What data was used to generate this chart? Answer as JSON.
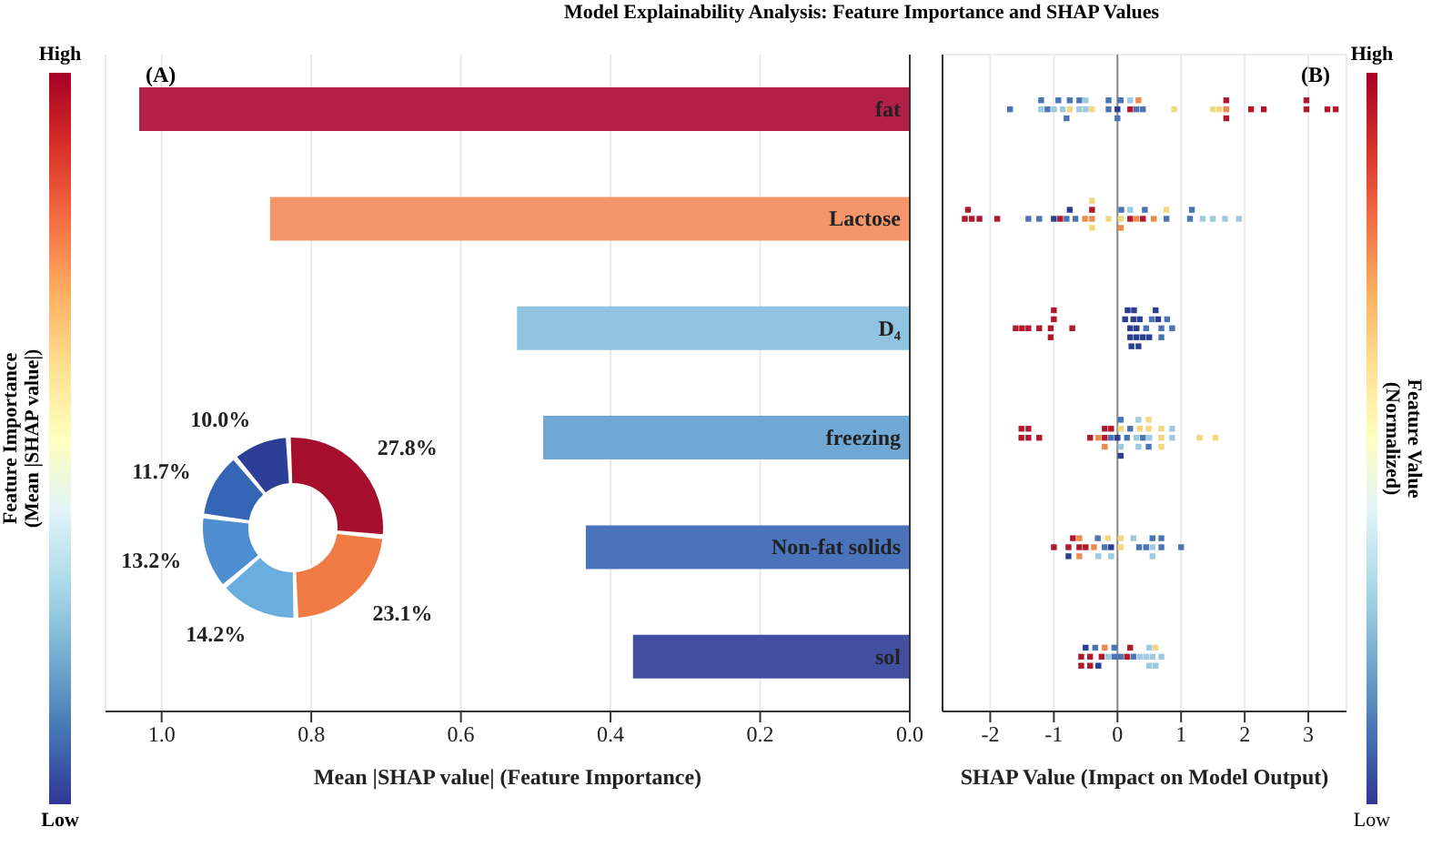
{
  "chart_data": [
    {
      "type": "bar",
      "orientation": "horizontal",
      "title": "Model Explainability Analysis: Feature Importance and SHAP Values",
      "xlabel": "Mean |SHAP value| (Feature Importance)",
      "annotations": [
        "(A)",
        "High",
        "Low"
      ],
      "categories": [
        "fat",
        "Lactose",
        "D₄",
        "freezing",
        "Non-fat solids",
        "sol"
      ],
      "values": [
        1.03,
        0.855,
        0.525,
        0.49,
        0.433,
        0.37
      ],
      "colors": [
        "#b41f48",
        "#f4956a",
        "#8fc3e0",
        "#6fa8d4",
        "#4a73bb",
        "#434fa0"
      ],
      "xlim": [
        1.075,
        0
      ],
      "xticks": [
        {
          "value": 1,
          "label": "1.0"
        },
        0.8,
        0.6,
        0.4,
        0.2,
        {
          "value": 0,
          "label": "0.0"
        }
      ],
      "grid": "x",
      "clabel": "Feature Importance\n(Mean |SHAP  value|)"
    },
    {
      "type": "donut",
      "categories": [
        null,
        null,
        null,
        null,
        null,
        null
      ],
      "values": [
        27.8,
        23.1,
        14.2,
        13.2,
        11.7,
        10.0
      ],
      "colors": [
        "#a50f2d",
        "#f07b45",
        "#6aaee0",
        "#4d8fd0",
        "#3565b5",
        "#2a3f95"
      ],
      "value_labels": [
        "27.8%",
        "23.1%",
        "14.2%",
        "13.2%",
        "11.7%",
        "10.0%"
      ]
    },
    {
      "type": "scatter",
      "orientation": "horizontal",
      "xlabel": "SHAP Value (Impact on Model Output)",
      "annotations": [
        "(B)",
        "High",
        "Low"
      ],
      "clabel": "Feature Value\n(Normalized)",
      "categories": [
        "fat",
        "Lactose",
        "D₄",
        "freezing",
        "Non-fat solids",
        "sol"
      ],
      "tick_labels": "x",
      "xlim": [
        -2.75,
        3.6
      ],
      "xticks": [
        -2,
        -1,
        0,
        1,
        2,
        3
      ],
      "grid": true,
      "marker": "square",
      "ref_lines": [
        {
          "axis": "x",
          "value": 0,
          "color": "#888888"
        }
      ],
      "series": [
        {
          "x": [
            "fat",
            "fat",
            "fat",
            "fat",
            "fat",
            "fat",
            "fat",
            "fat",
            "fat",
            "fat",
            "fat",
            "fat",
            "fat",
            "fat",
            "fat",
            "fat",
            "fat",
            "fat",
            "fat",
            "fat",
            "fat",
            "fat",
            "fat",
            "fat",
            "fat",
            "fat",
            "fat",
            "fat",
            "fat",
            "fat",
            "fat",
            "fat",
            "fat",
            "fat",
            "fat",
            "fat",
            "fat"
          ],
          "values": [
            -1.69,
            -1.2,
            -1.1,
            -1.0,
            -0.93,
            -0.86,
            -0.6,
            -0.5,
            -0.4,
            -0.14,
            0.0,
            0.2,
            0.3,
            0.4,
            0.89,
            1.5,
            1.6,
            1.71,
            2.1,
            2.97,
            3.3,
            3.43,
            -1.2,
            -0.75,
            -0.6,
            -0.5,
            -0.14,
            0.05,
            0.2,
            0.33,
            1.71,
            2.3,
            2.97,
            -0.75,
            -0.8,
            0.0,
            1.71
          ],
          "colors": [
            "#4a74b4",
            "#9ecae1",
            "#4a74b4",
            "#9ecae1",
            "#4a74b4",
            "#9ecae1",
            "#9ecae1",
            "#9ecae1",
            "#f5d77f",
            "#4a74b4",
            "#2c3e8f",
            "#b2182b",
            "#4a74b4",
            "#4a74b4",
            "#f5d77f",
            "#f5d77f",
            "#f5d77f",
            "#f08a4b",
            "#b2182b",
            "#b2182b",
            "#b2182b",
            "#b2182b",
            "#4a74b4",
            "#f5d77f",
            "#4a74b4",
            "#9ecae1",
            "#4a74b4",
            "#4a74b4",
            "#9ecae1",
            "#f08a4b",
            "#b2182b",
            "#b2182b",
            "#b2182b",
            "#4a74b4",
            "#4a74b4",
            "#4a74b4",
            "#b2182b"
          ]
        },
        {
          "x": [
            "Lactose",
            "Lactose",
            "Lactose",
            "Lactose",
            "Lactose",
            "Lactose",
            "Lactose",
            "Lactose",
            "Lactose",
            "Lactose",
            "Lactose",
            "Lactose",
            "Lactose",
            "Lactose",
            "Lactose",
            "Lactose",
            "Lactose",
            "Lactose",
            "Lactose",
            "Lactose",
            "Lactose",
            "Lactose",
            "Lactose",
            "Lactose",
            "Lactose",
            "Lactose",
            "Lactose",
            "Lactose",
            "Lactose",
            "Lactose",
            "Lactose",
            "Lactose",
            "Lactose",
            "Lactose",
            "Lactose"
          ],
          "values": [
            -2.4,
            -2.35,
            -2.29,
            -2.17,
            -1.89,
            -1.4,
            -1.23,
            -1.0,
            -0.9,
            -0.8,
            -0.75,
            -0.66,
            -0.51,
            -0.4,
            -0.14,
            0.05,
            0.2,
            0.3,
            0.4,
            0.57,
            0.77,
            1.14,
            1.34,
            1.5,
            1.69,
            1.91,
            -0.4,
            0.06,
            0.2,
            0.43,
            0.77,
            1.17,
            -0.4,
            -0.4,
            0.05
          ],
          "colors": [
            "#b2182b",
            "#b2182b",
            "#b2182b",
            "#b2182b",
            "#b2182b",
            "#4a74b4",
            "#4a74b4",
            "#2c3e8f",
            "#b2182b",
            "#4a74b4",
            "#2c3e8f",
            "#4a74b4",
            "#f08a4b",
            "#f08a4b",
            "#f5d77f",
            "#f5d77f",
            "#b2182b",
            "#f08a4b",
            "#b2182b",
            "#f08a4b",
            "#4a74b4",
            "#4a74b4",
            "#9ecae1",
            "#9ecae1",
            "#9ecae1",
            "#9ecae1",
            "#b2182b",
            "#4a74b4",
            "#9ecae1",
            "#4a74b4",
            "#f5d77f",
            "#4a74b4",
            "#f5d77f",
            "#f5d77f",
            "#f08a4b"
          ]
        },
        {
          "x": [
            "D₄",
            "D₄",
            "D₄",
            "D₄",
            "D₄",
            "D₄",
            "D₄",
            "D₄",
            "D₄",
            "D₄",
            "D₄",
            "D₄",
            "D₄",
            "D₄",
            "D₄",
            "D₄",
            "D₄",
            "D₄",
            "D₄",
            "D₄",
            "D₄",
            "D₄",
            "D₄",
            "D₄",
            "D₄",
            "D₄",
            "D₄",
            "D₄",
            "D₄",
            "D₄"
          ],
          "values": [
            -1.6,
            -1.5,
            -1.4,
            -1.23,
            -1.05,
            -1.0,
            -0.71,
            0.2,
            0.25,
            0.3,
            0.35,
            0.45,
            0.54,
            0.69,
            0.78,
            0.86,
            -1.05,
            -1.0,
            0.2,
            0.3,
            0.69,
            0.12,
            0.16,
            0.22,
            0.26,
            0.33,
            0.4,
            0.5,
            0.6,
            0.64
          ],
          "colors": [
            "#b2182b",
            "#b2182b",
            "#b2182b",
            "#b2182b",
            "#b2182b",
            "#b2182b",
            "#b2182b",
            "#2c3e8f",
            "#2c3e8f",
            "#2c3e8f",
            "#2c3e8f",
            "#4a74b4",
            "#4a74b4",
            "#4a74b4",
            "#4a74b4",
            "#4a74b4",
            "#b2182b",
            "#b2182b",
            "#2c3e8f",
            "#2c3e8f",
            "#4a74b4",
            "#2c3e8f",
            "#2c3e8f",
            "#2c3e8f",
            "#2c3e8f",
            "#2c3e8f",
            "#2c3e8f",
            "#2c3e8f",
            "#2c3e8f",
            "#2c3e8f"
          ]
        },
        {
          "x": [
            "freezing",
            "freezing",
            "freezing",
            "freezing",
            "freezing",
            "freezing",
            "freezing",
            "freezing",
            "freezing",
            "freezing",
            "freezing",
            "freezing",
            "freezing",
            "freezing",
            "freezing",
            "freezing",
            "freezing",
            "freezing",
            "freezing",
            "freezing",
            "freezing",
            "freezing",
            "freezing",
            "freezing",
            "freezing",
            "freezing",
            "freezing",
            "freezing",
            "freezing",
            "freezing",
            "freezing",
            "freezing",
            "freezing",
            "freezing",
            "freezing"
          ],
          "values": [
            -1.51,
            -1.4,
            -1.23,
            -0.43,
            -0.3,
            -0.2,
            -0.1,
            0.0,
            0.05,
            0.15,
            0.3,
            0.4,
            0.49,
            0.69,
            0.86,
            1.29,
            1.54,
            -1.51,
            -1.4,
            -0.2,
            -0.1,
            0.05,
            0.2,
            0.35,
            0.5,
            0.69,
            0.86,
            0.05,
            0.33,
            0.49,
            -0.2,
            0.05,
            0.33,
            0.49,
            0.69
          ],
          "colors": [
            "#b2182b",
            "#b2182b",
            "#b2182b",
            "#b2182b",
            "#f08a4b",
            "#b2182b",
            "#4a74b4",
            "#2c3e8f",
            "#f5d77f",
            "#4a74b4",
            "#9ecae1",
            "#4a74b4",
            "#f5d77f",
            "#f5d77f",
            "#9ecae1",
            "#f5d77f",
            "#f5d77f",
            "#b2182b",
            "#b2182b",
            "#b2182b",
            "#b2182b",
            "#9ecae1",
            "#4a74b4",
            "#f5d77f",
            "#9ecae1",
            "#f5d77f",
            "#9ecae1",
            "#4a74b4",
            "#9ecae1",
            "#4a74b4",
            "#f08a4b",
            "#2c3e8f",
            "#9ecae1",
            "#f5d77f",
            "#f5d77f"
          ]
        },
        {
          "x": [
            "Non-fat solids",
            "Non-fat solids",
            "Non-fat solids",
            "Non-fat solids",
            "Non-fat solids",
            "Non-fat solids",
            "Non-fat solids",
            "Non-fat solids",
            "Non-fat solids",
            "Non-fat solids",
            "Non-fat solids",
            "Non-fat solids",
            "Non-fat solids",
            "Non-fat solids",
            "Non-fat solids",
            "Non-fat solids",
            "Non-fat solids",
            "Non-fat solids",
            "Non-fat solids",
            "Non-fat solids",
            "Non-fat solids",
            "Non-fat solids",
            "Non-fat solids",
            "Non-fat solids",
            "Non-fat solids",
            "Non-fat solids"
          ],
          "values": [
            -1.0,
            -0.77,
            -0.7,
            -0.6,
            -0.5,
            -0.37,
            -0.31,
            -0.2,
            -0.1,
            0.05,
            0.34,
            0.45,
            0.55,
            0.69,
            1.0,
            -0.77,
            -0.6,
            -0.3,
            -0.15,
            0.05,
            0.25,
            0.55,
            0.69,
            -0.6,
            -0.1,
            0.55
          ],
          "colors": [
            "#b2182b",
            "#b2182b",
            "#b2182b",
            "#b2182b",
            "#b2182b",
            "#f08a4b",
            "#4a74b4",
            "#4a74b4",
            "#2c3e8f",
            "#f5d77f",
            "#4a74b4",
            "#4a74b4",
            "#9ecae1",
            "#4a74b4",
            "#4a74b4",
            "#2c3e8f",
            "#f08a4b",
            "#9ecae1",
            "#f5d77f",
            "#f5d77f",
            "#9ecae1",
            "#4a74b4",
            "#4a74b4",
            "#f08a4b",
            "#9ecae1",
            "#9ecae1"
          ]
        },
        {
          "x": [
            "sol",
            "sol",
            "sol",
            "sol",
            "sol",
            "sol",
            "sol",
            "sol",
            "sol",
            "sol",
            "sol",
            "sol",
            "sol",
            "sol",
            "sol",
            "sol",
            "sol",
            "sol",
            "sol",
            "sol",
            "sol",
            "sol",
            "sol",
            "sol"
          ],
          "values": [
            -0.57,
            -0.5,
            -0.43,
            -0.35,
            -0.25,
            -0.15,
            -0.05,
            0.05,
            0.15,
            0.25,
            0.35,
            0.45,
            0.55,
            0.69,
            -0.57,
            -0.43,
            -0.2,
            -0.05,
            0.2,
            0.5,
            0.6,
            -0.3,
            0.5,
            0.6
          ],
          "colors": [
            "#b2182b",
            "#2c3e8f",
            "#b2182b",
            "#4a74b4",
            "#b2182b",
            "#9ecae1",
            "#4a74b4",
            "#4a74b4",
            "#b2182b",
            "#4a74b4",
            "#9ecae1",
            "#9ecae1",
            "#9ecae1",
            "#9ecae1",
            "#b2182b",
            "#b2182b",
            "#f08a4b",
            "#4a74b4",
            "#b2182b",
            "#9ecae1",
            "#f5d77f",
            "#2c3e8f",
            "#9ecae1",
            "#9ecae1"
          ]
        }
      ]
    }
  ]
}
